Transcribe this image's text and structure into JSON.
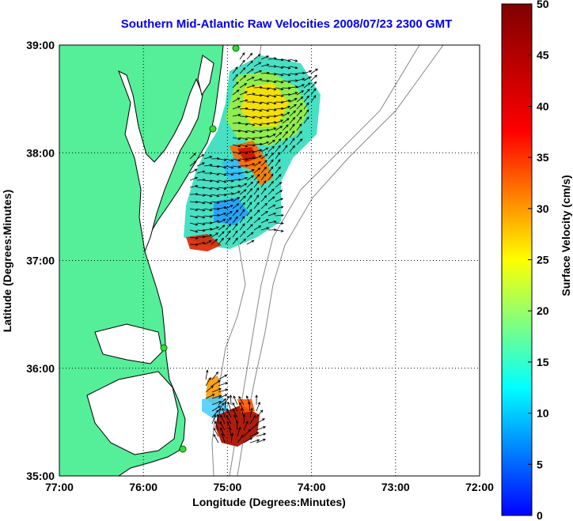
{
  "title": "Southern Mid-Atlantic Raw Velocities 2008/07/23 2300 GMT",
  "xlabel": "Longitude (Degrees:Minutes)",
  "ylabel": "Latitude (Degrees:Minutes)",
  "colorbar_label": "Surface Velocity (cm/s)",
  "colorbar_range": [
    0,
    50
  ],
  "colorbar_ticks": [
    "0",
    "5",
    "10",
    "15",
    "20",
    "25",
    "30",
    "35",
    "40",
    "45",
    "50"
  ],
  "x_ticks": [
    "77:00",
    "76:00",
    "75:00",
    "74:00",
    "73:00",
    "72:00"
  ],
  "y_ticks": [
    "35:00",
    "36:00",
    "37:00",
    "38:00",
    "39:00"
  ],
  "x_range": [
    -77,
    -72
  ],
  "y_range": [
    35,
    39
  ],
  "colors": {
    "land": "#55ee99",
    "title": "#0000ee",
    "grid": "#000000"
  }
}
